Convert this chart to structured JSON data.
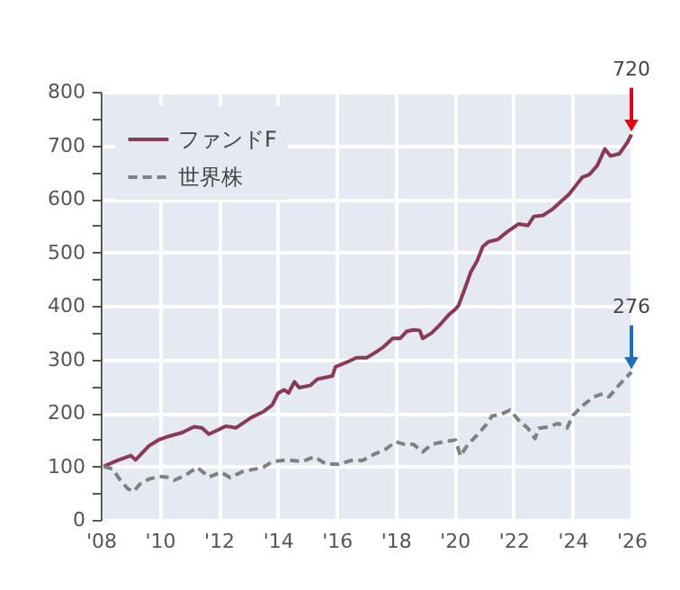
{
  "chart_data": {
    "type": "line",
    "xlim": [
      2008,
      2026
    ],
    "ylim": [
      0,
      800
    ],
    "xticks": [
      {
        "value": 2008,
        "label": "'08"
      },
      {
        "value": 2010,
        "label": "'10"
      },
      {
        "value": 2012,
        "label": "'12"
      },
      {
        "value": 2014,
        "label": "'14"
      },
      {
        "value": 2016,
        "label": "'16"
      },
      {
        "value": 2018,
        "label": "'18"
      },
      {
        "value": 2020,
        "label": "'20"
      },
      {
        "value": 2022,
        "label": "'22"
      },
      {
        "value": 2024,
        "label": "'24"
      },
      {
        "value": 2026,
        "label": "'26"
      }
    ],
    "yticks": [
      0,
      {
        "value": 50,
        "label": null
      },
      100,
      {
        "value": 150,
        "label": null
      },
      200,
      {
        "value": 250,
        "label": null
      },
      300,
      {
        "value": 350,
        "label": null
      },
      400,
      {
        "value": 450,
        "label": null
      },
      500,
      {
        "value": 550,
        "label": null
      },
      600,
      {
        "value": 650,
        "label": null
      },
      700,
      {
        "value": 750,
        "label": null
      },
      800
    ],
    "grid": true,
    "legend": "top left",
    "marker": "none",
    "series": [
      {
        "name": "ファンドF",
        "color": "#8b3a55",
        "line_style": "solid",
        "x": [
          2008.1,
          2008.61,
          2009.02,
          2009.18,
          2009.63,
          2009.98,
          2010.24,
          2010.76,
          2011.16,
          2011.43,
          2011.67,
          2011.98,
          2012.24,
          2012.59,
          2013.1,
          2013.51,
          2013.82,
          2014.02,
          2014.22,
          2014.37,
          2014.57,
          2014.73,
          2015.1,
          2015.35,
          2015.86,
          2015.96,
          2016.37,
          2016.67,
          2017.02,
          2017.29,
          2017.59,
          2017.9,
          2018.16,
          2018.37,
          2018.61,
          2018.82,
          2018.92,
          2019.22,
          2019.53,
          2019.8,
          2020.04,
          2020.14,
          2020.35,
          2020.55,
          2020.76,
          2020.96,
          2021.16,
          2021.47,
          2021.78,
          2022.18,
          2022.49,
          2022.69,
          2023.0,
          2023.31,
          2023.61,
          2023.88,
          2024.12,
          2024.33,
          2024.57,
          2024.84,
          2025.1,
          2025.29,
          2025.59,
          2025.86,
          2026.0
        ],
        "values": [
          100,
          112,
          120,
          112,
          138,
          150,
          155,
          163,
          174,
          172,
          160,
          168,
          175,
          172,
          191,
          202,
          215,
          237,
          243,
          237,
          258,
          247,
          251,
          263,
          269,
          286,
          295,
          303,
          303,
          312,
          323,
          339,
          339,
          352,
          355,
          354,
          339,
          349,
          366,
          383,
          394,
          401,
          432,
          463,
          483,
          511,
          520,
          524,
          538,
          553,
          550,
          567,
          569,
          580,
          595,
          608,
          625,
          640,
          645,
          662,
          693,
          680,
          684,
          705,
          720
        ]
      },
      {
        "name": "世界株",
        "color": "#808080",
        "line_style": "dashed",
        "x": [
          2008.1,
          2008.41,
          2008.61,
          2008.92,
          2009.12,
          2009.33,
          2009.63,
          2009.98,
          2010.24,
          2010.49,
          2010.86,
          2011.27,
          2011.67,
          2012.08,
          2012.39,
          2012.8,
          2013.51,
          2013.82,
          2014.33,
          2014.84,
          2015.24,
          2015.65,
          2016.06,
          2016.57,
          2016.88,
          2017.29,
          2017.69,
          2018.0,
          2018.31,
          2018.61,
          2018.92,
          2019.22,
          2019.73,
          2020.04,
          2020.2,
          2020.45,
          2020.76,
          2021.06,
          2021.27,
          2021.57,
          2021.88,
          2022.18,
          2022.49,
          2022.73,
          2022.86,
          2023.2,
          2023.51,
          2023.82,
          2024.02,
          2024.33,
          2024.73,
          2025.04,
          2025.24,
          2025.55,
          2025.8,
          2026.0
        ],
        "values": [
          100,
          95,
          78,
          58,
          53,
          67,
          76,
          81,
          80,
          74,
          83,
          98,
          80,
          89,
          79,
          90,
          98,
          109,
          112,
          109,
          118,
          104,
          104,
          112,
          111,
          123,
          133,
          146,
          141,
          141,
          127,
          141,
          147,
          149,
          119,
          141,
          158,
          177,
          194,
          197,
          205,
          186,
          171,
          152,
          171,
          174,
          180,
          172,
          195,
          213,
          230,
          236,
          230,
          250,
          265,
          276
        ]
      }
    ],
    "annotations": [
      {
        "text": "720",
        "x": 2026,
        "y": 720
      },
      {
        "text": "276",
        "x": 2026,
        "y": 276
      }
    ]
  }
}
